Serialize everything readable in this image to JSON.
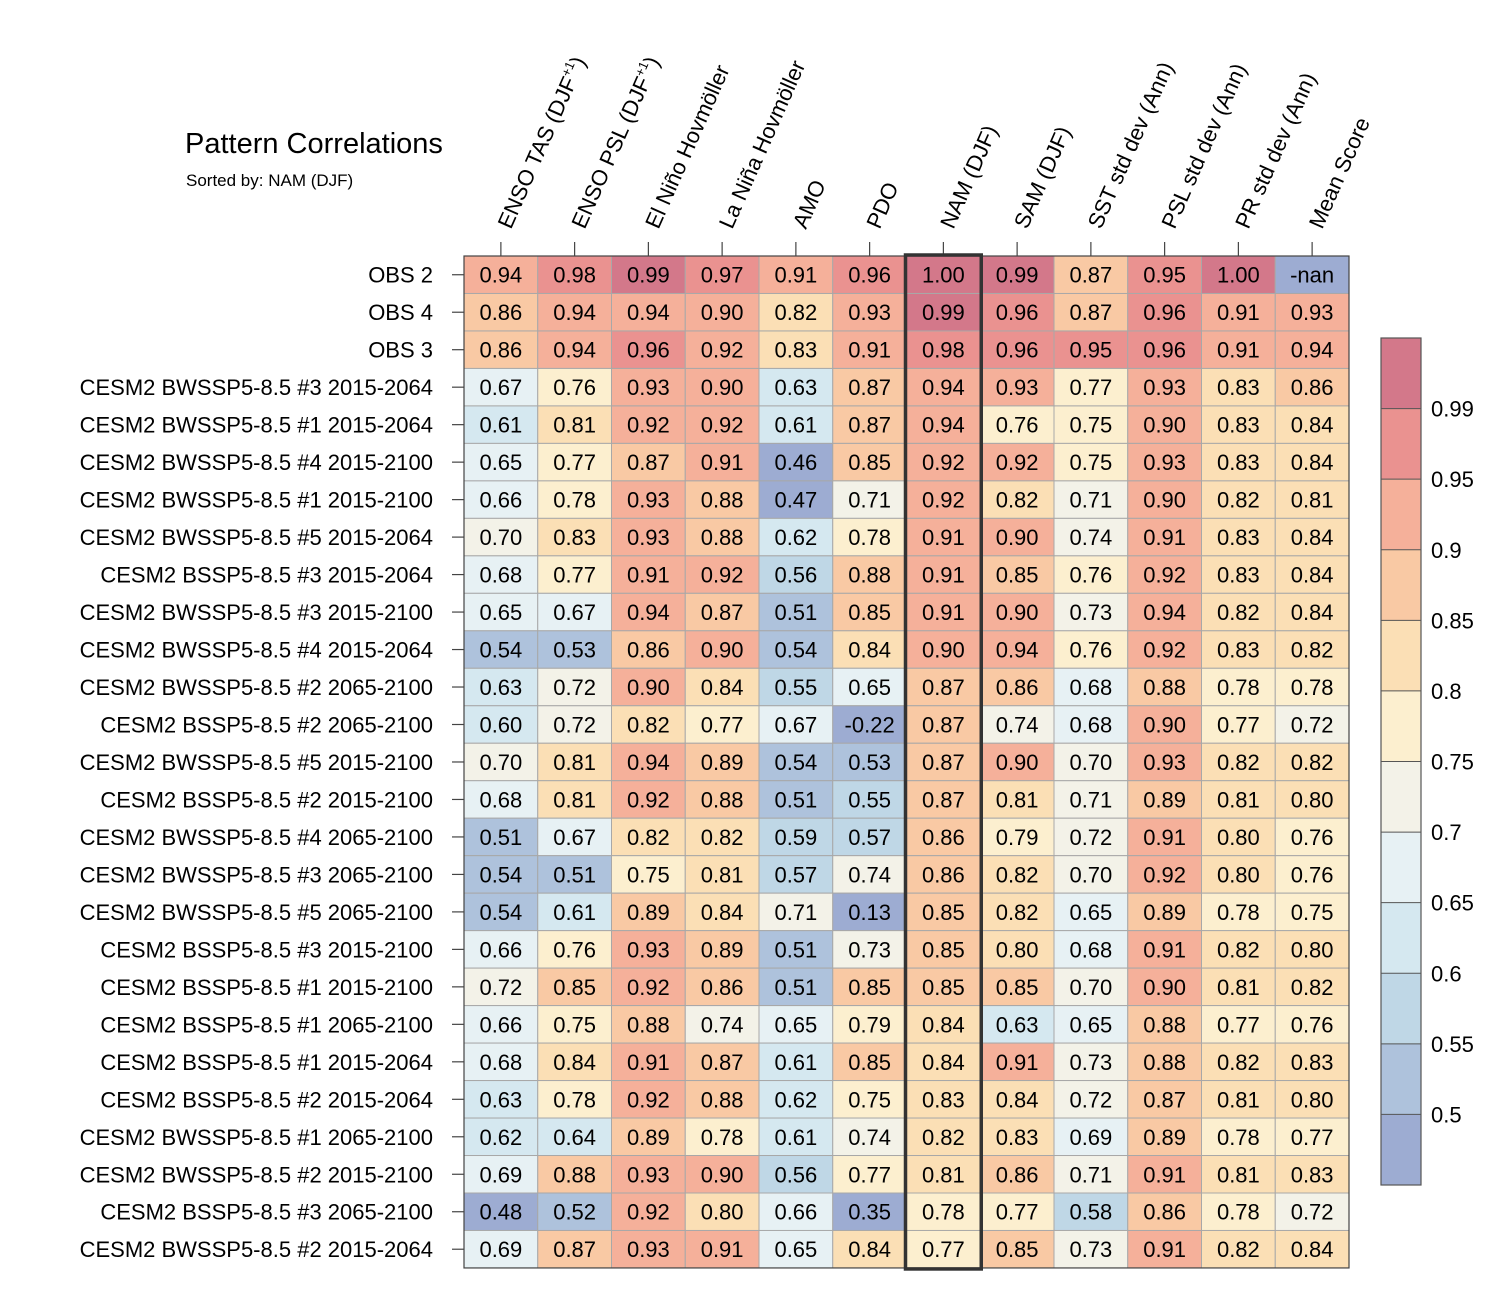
{
  "chart_data": {
    "type": "heatmap",
    "title": "Pattern Correlations",
    "subtitle": "Sorted by: NAM (DJF)",
    "highlighted_column": "NAM (DJF)",
    "columns": [
      {
        "base": "ENSO TAS (DJF",
        "sup": "+1",
        "tail": ")"
      },
      {
        "base": "ENSO PSL (DJF",
        "sup": "+1",
        "tail": ")"
      },
      {
        "base": "El Niño Hovmöller"
      },
      {
        "base": "La Niña Hovmöller"
      },
      {
        "base": "AMO"
      },
      {
        "base": "PDO"
      },
      {
        "base": "NAM (DJF)"
      },
      {
        "base": "SAM (DJF)"
      },
      {
        "base": "SST std dev (Ann)"
      },
      {
        "base": "PSL std dev (Ann)"
      },
      {
        "base": "PR std dev (Ann)"
      },
      {
        "base": "Mean Score"
      }
    ],
    "rows": [
      {
        "name": "OBS 2",
        "values": [
          "0.94",
          "0.98",
          "0.99",
          "0.97",
          "0.91",
          "0.96",
          "1.00",
          "0.99",
          "0.87",
          "0.95",
          "1.00",
          "-nan"
        ]
      },
      {
        "name": "OBS 4",
        "values": [
          "0.86",
          "0.94",
          "0.94",
          "0.90",
          "0.82",
          "0.93",
          "0.99",
          "0.96",
          "0.87",
          "0.96",
          "0.91",
          "0.93"
        ]
      },
      {
        "name": "OBS 3",
        "values": [
          "0.86",
          "0.94",
          "0.96",
          "0.92",
          "0.83",
          "0.91",
          "0.98",
          "0.96",
          "0.95",
          "0.96",
          "0.91",
          "0.94"
        ]
      },
      {
        "name": "CESM2 BWSSP5-8.5 #3 2015-2064",
        "values": [
          "0.67",
          "0.76",
          "0.93",
          "0.90",
          "0.63",
          "0.87",
          "0.94",
          "0.93",
          "0.77",
          "0.93",
          "0.83",
          "0.86"
        ]
      },
      {
        "name": "CESM2 BWSSP5-8.5 #1 2015-2064",
        "values": [
          "0.61",
          "0.81",
          "0.92",
          "0.92",
          "0.61",
          "0.87",
          "0.94",
          "0.76",
          "0.75",
          "0.90",
          "0.83",
          "0.84"
        ]
      },
      {
        "name": "CESM2 BWSSP5-8.5 #4 2015-2100",
        "values": [
          "0.65",
          "0.77",
          "0.87",
          "0.91",
          "0.46",
          "0.85",
          "0.92",
          "0.92",
          "0.75",
          "0.93",
          "0.83",
          "0.84"
        ]
      },
      {
        "name": "CESM2 BWSSP5-8.5 #1 2015-2100",
        "values": [
          "0.66",
          "0.78",
          "0.93",
          "0.88",
          "0.47",
          "0.71",
          "0.92",
          "0.82",
          "0.71",
          "0.90",
          "0.82",
          "0.81"
        ]
      },
      {
        "name": "CESM2 BWSSP5-8.5 #5 2015-2064",
        "values": [
          "0.70",
          "0.83",
          "0.93",
          "0.88",
          "0.62",
          "0.78",
          "0.91",
          "0.90",
          "0.74",
          "0.91",
          "0.83",
          "0.84"
        ]
      },
      {
        "name": "CESM2 BSSP5-8.5 #3 2015-2064",
        "values": [
          "0.68",
          "0.77",
          "0.91",
          "0.92",
          "0.56",
          "0.88",
          "0.91",
          "0.85",
          "0.76",
          "0.92",
          "0.83",
          "0.84"
        ]
      },
      {
        "name": "CESM2 BWSSP5-8.5 #3 2015-2100",
        "values": [
          "0.65",
          "0.67",
          "0.94",
          "0.87",
          "0.51",
          "0.85",
          "0.91",
          "0.90",
          "0.73",
          "0.94",
          "0.82",
          "0.84"
        ]
      },
      {
        "name": "CESM2 BWSSP5-8.5 #4 2015-2064",
        "values": [
          "0.54",
          "0.53",
          "0.86",
          "0.90",
          "0.54",
          "0.84",
          "0.90",
          "0.94",
          "0.76",
          "0.92",
          "0.83",
          "0.82"
        ]
      },
      {
        "name": "CESM2 BWSSP5-8.5 #2 2065-2100",
        "values": [
          "0.63",
          "0.72",
          "0.90",
          "0.84",
          "0.55",
          "0.65",
          "0.87",
          "0.86",
          "0.68",
          "0.88",
          "0.78",
          "0.78"
        ]
      },
      {
        "name": "CESM2 BSSP5-8.5 #2 2065-2100",
        "values": [
          "0.60",
          "0.72",
          "0.82",
          "0.77",
          "0.67",
          "-0.22",
          "0.87",
          "0.74",
          "0.68",
          "0.90",
          "0.77",
          "0.72"
        ]
      },
      {
        "name": "CESM2 BWSSP5-8.5 #5 2015-2100",
        "values": [
          "0.70",
          "0.81",
          "0.94",
          "0.89",
          "0.54",
          "0.53",
          "0.87",
          "0.90",
          "0.70",
          "0.93",
          "0.82",
          "0.82"
        ]
      },
      {
        "name": "CESM2 BSSP5-8.5 #2 2015-2100",
        "values": [
          "0.68",
          "0.81",
          "0.92",
          "0.88",
          "0.51",
          "0.55",
          "0.87",
          "0.81",
          "0.71",
          "0.89",
          "0.81",
          "0.80"
        ]
      },
      {
        "name": "CESM2 BWSSP5-8.5 #4 2065-2100",
        "values": [
          "0.51",
          "0.67",
          "0.82",
          "0.82",
          "0.59",
          "0.57",
          "0.86",
          "0.79",
          "0.72",
          "0.91",
          "0.80",
          "0.76"
        ]
      },
      {
        "name": "CESM2 BWSSP5-8.5 #3 2065-2100",
        "values": [
          "0.54",
          "0.51",
          "0.75",
          "0.81",
          "0.57",
          "0.74",
          "0.86",
          "0.82",
          "0.70",
          "0.92",
          "0.80",
          "0.76"
        ]
      },
      {
        "name": "CESM2 BWSSP5-8.5 #5 2065-2100",
        "values": [
          "0.54",
          "0.61",
          "0.89",
          "0.84",
          "0.71",
          "0.13",
          "0.85",
          "0.82",
          "0.65",
          "0.89",
          "0.78",
          "0.75"
        ]
      },
      {
        "name": "CESM2 BSSP5-8.5 #3 2015-2100",
        "values": [
          "0.66",
          "0.76",
          "0.93",
          "0.89",
          "0.51",
          "0.73",
          "0.85",
          "0.80",
          "0.68",
          "0.91",
          "0.82",
          "0.80"
        ]
      },
      {
        "name": "CESM2 BSSP5-8.5 #1 2015-2100",
        "values": [
          "0.72",
          "0.85",
          "0.92",
          "0.86",
          "0.51",
          "0.85",
          "0.85",
          "0.85",
          "0.70",
          "0.90",
          "0.81",
          "0.82"
        ]
      },
      {
        "name": "CESM2 BSSP5-8.5 #1 2065-2100",
        "values": [
          "0.66",
          "0.75",
          "0.88",
          "0.74",
          "0.65",
          "0.79",
          "0.84",
          "0.63",
          "0.65",
          "0.88",
          "0.77",
          "0.76"
        ]
      },
      {
        "name": "CESM2 BSSP5-8.5 #1 2015-2064",
        "values": [
          "0.68",
          "0.84",
          "0.91",
          "0.87",
          "0.61",
          "0.85",
          "0.84",
          "0.91",
          "0.73",
          "0.88",
          "0.82",
          "0.83"
        ]
      },
      {
        "name": "CESM2 BSSP5-8.5 #2 2015-2064",
        "values": [
          "0.63",
          "0.78",
          "0.92",
          "0.88",
          "0.62",
          "0.75",
          "0.83",
          "0.84",
          "0.72",
          "0.87",
          "0.81",
          "0.80"
        ]
      },
      {
        "name": "CESM2 BWSSP5-8.5 #1 2065-2100",
        "values": [
          "0.62",
          "0.64",
          "0.89",
          "0.78",
          "0.61",
          "0.74",
          "0.82",
          "0.83",
          "0.69",
          "0.89",
          "0.78",
          "0.77"
        ]
      },
      {
        "name": "CESM2 BWSSP5-8.5 #2 2015-2100",
        "values": [
          "0.69",
          "0.88",
          "0.93",
          "0.90",
          "0.56",
          "0.77",
          "0.81",
          "0.86",
          "0.71",
          "0.91",
          "0.81",
          "0.83"
        ]
      },
      {
        "name": "CESM2 BSSP5-8.5 #3 2065-2100",
        "values": [
          "0.48",
          "0.52",
          "0.92",
          "0.80",
          "0.66",
          "0.35",
          "0.78",
          "0.77",
          "0.58",
          "0.86",
          "0.78",
          "0.72"
        ]
      },
      {
        "name": "CESM2 BWSSP5-8.5 #2 2015-2064",
        "values": [
          "0.69",
          "0.87",
          "0.93",
          "0.91",
          "0.65",
          "0.84",
          "0.77",
          "0.85",
          "0.73",
          "0.91",
          "0.82",
          "0.84"
        ]
      }
    ],
    "colorbar": {
      "levels": [
        0.5,
        0.55,
        0.6,
        0.65,
        0.7,
        0.75,
        0.8,
        0.85,
        0.9,
        0.95,
        0.99
      ],
      "labels": [
        "0.5",
        "0.55",
        "0.6",
        "0.65",
        "0.7",
        "0.75",
        "0.8",
        "0.85",
        "0.9",
        "0.95",
        "0.99"
      ],
      "colors": [
        "#9dacd2",
        "#aec2dc",
        "#bfd7e6",
        "#d5e8f0",
        "#e7f1f4",
        "#f3f2e8",
        "#fcefcf",
        "#fbdfb5",
        "#f9c9a4",
        "#f5b09a",
        "#ea9290",
        "#d3788a"
      ],
      "nan_color": "#9dacd2"
    }
  }
}
